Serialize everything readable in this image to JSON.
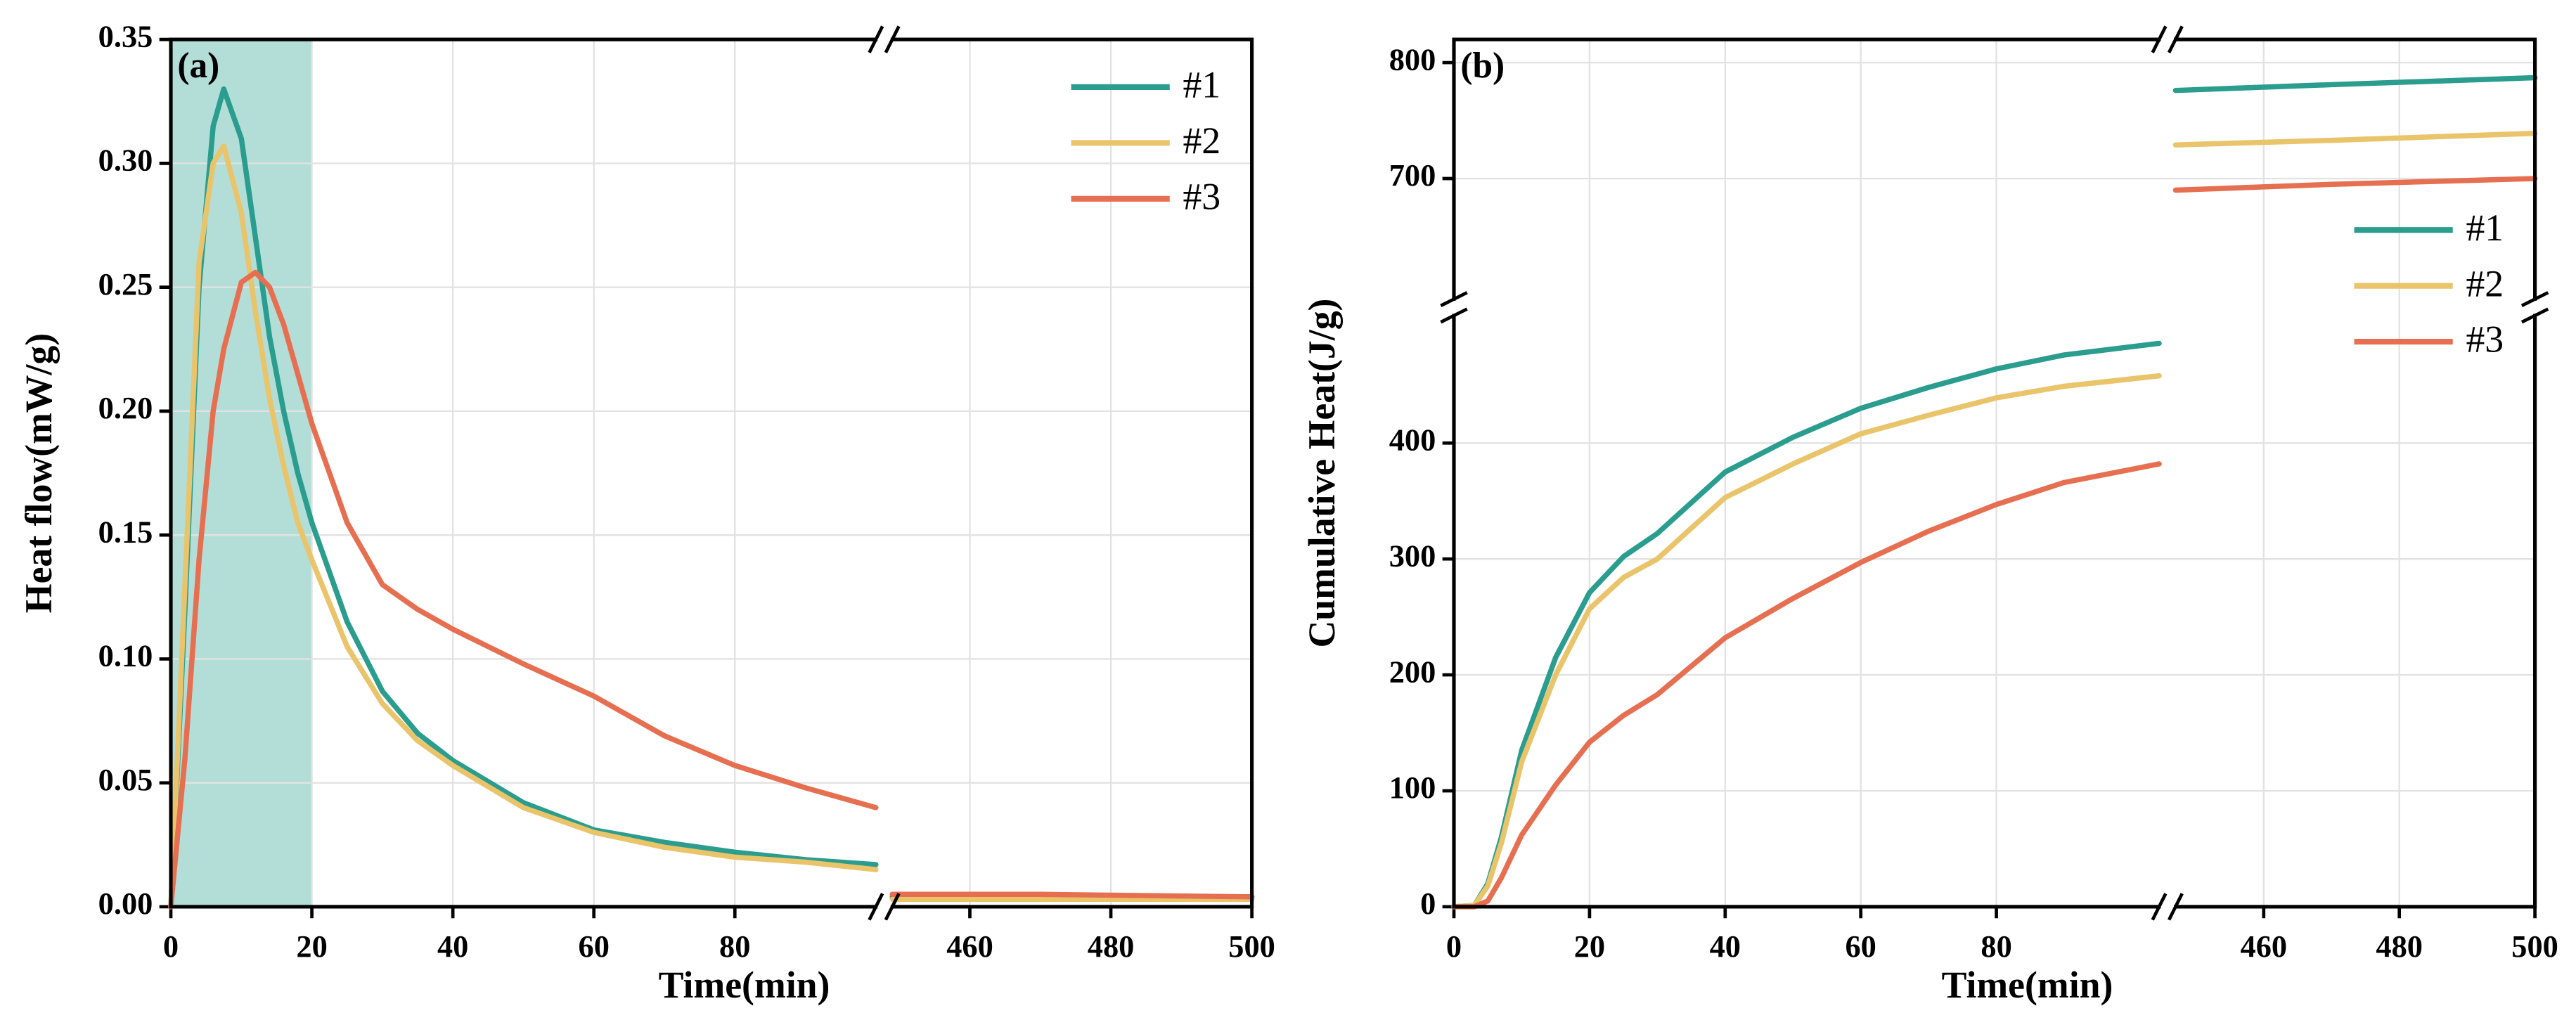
{
  "chart_data": [
    {
      "type": "line",
      "panel_label": "(a)",
      "xlabel": "Time(min)",
      "ylabel": "Heat flow(mW/g)",
      "x": [
        0,
        2,
        4,
        6,
        7.5,
        10,
        12,
        14,
        16,
        18,
        20,
        25,
        30,
        35,
        40,
        50,
        60,
        70,
        80,
        90,
        100,
        449,
        470,
        500
      ],
      "series": [
        {
          "name": "#1",
          "color": "#2a9d8f",
          "values": [
            0,
            0.12,
            0.25,
            0.315,
            0.33,
            0.31,
            0.27,
            0.23,
            0.2,
            0.175,
            0.155,
            0.115,
            0.087,
            0.07,
            0.059,
            0.042,
            0.031,
            0.026,
            0.022,
            0.019,
            0.017,
            0.004,
            0.004,
            0.004
          ]
        },
        {
          "name": "#2",
          "color": "#e9c46a",
          "values": [
            0,
            0.13,
            0.26,
            0.3,
            0.307,
            0.28,
            0.24,
            0.205,
            0.178,
            0.155,
            0.14,
            0.105,
            0.082,
            0.067,
            0.057,
            0.04,
            0.03,
            0.024,
            0.02,
            0.018,
            0.015,
            0.003,
            0.003,
            0.003
          ]
        },
        {
          "name": "#3",
          "color": "#e76f51",
          "values": [
            0,
            0.06,
            0.14,
            0.2,
            0.225,
            0.252,
            0.256,
            0.25,
            0.235,
            0.215,
            0.195,
            0.155,
            0.13,
            0.12,
            0.112,
            0.098,
            0.085,
            0.069,
            0.057,
            0.048,
            0.04,
            0.005,
            0.005,
            0.004
          ]
        }
      ],
      "xlim": [
        0,
        500
      ],
      "x_break": [
        100,
        449
      ],
      "xticks": [
        0,
        20,
        40,
        60,
        80,
        460,
        480,
        500
      ],
      "ylim": [
        0,
        0.35
      ],
      "yticks": [
        {
          "value": 0,
          "label": "0.00"
        },
        0.05,
        {
          "value": 0.1,
          "label": "0.10"
        },
        0.15,
        {
          "value": 0.2,
          "label": "0.20"
        },
        0.25,
        {
          "value": 0.3,
          "label": "0.30"
        },
        0.35
      ],
      "grid": true,
      "legend": "upper right",
      "shaded_region": {
        "x": [
          0,
          20
        ],
        "color": "#b3ded8"
      }
    },
    {
      "type": "line",
      "panel_label": "(b)",
      "xlabel": "Time(min)",
      "ylabel": "Cumulative Heat(J/g)",
      "x": [
        0,
        3,
        5,
        7,
        10,
        15,
        20,
        25,
        30,
        40,
        50,
        60,
        70,
        80,
        90,
        104,
        447,
        470,
        500
      ],
      "series": [
        {
          "name": "#1",
          "color": "#2a9d8f",
          "values": [
            0,
            1,
            20,
            60,
            135,
            215,
            271,
            302,
            322,
            375,
            405,
            430,
            448,
            464,
            476,
            486,
            776,
            781,
            787
          ]
        },
        {
          "name": "#2",
          "color": "#e9c46a",
          "values": [
            0,
            1,
            18,
            55,
            125,
            200,
            257,
            284,
            300,
            353,
            382,
            408,
            424,
            439,
            449,
            458,
            729,
            733,
            739
          ]
        },
        {
          "name": "#3",
          "color": "#e76f51",
          "values": [
            0,
            0,
            5,
            25,
            62,
            105,
            142,
            165,
            183,
            232,
            266,
            297,
            324,
            347,
            366,
            382,
            690,
            695,
            700
          ]
        }
      ],
      "xlim": [
        0,
        500
      ],
      "x_break": [
        104,
        447
      ],
      "xticks": [
        0,
        20,
        40,
        60,
        80,
        460,
        480,
        500
      ],
      "ylim": [
        0,
        820
      ],
      "y_break": [
        510,
        596
      ],
      "yticks": [
        0,
        100,
        200,
        300,
        400,
        700,
        800
      ],
      "grid": true,
      "legend": "center right"
    }
  ]
}
